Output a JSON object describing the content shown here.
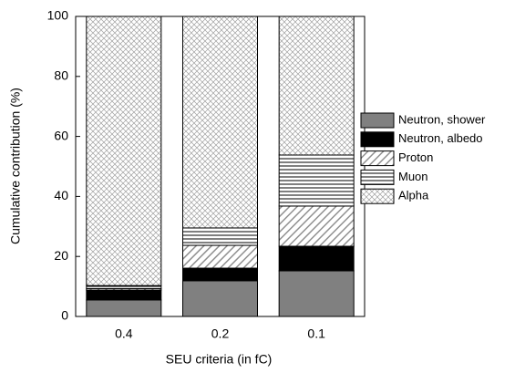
{
  "chart_data": {
    "type": "stacked_bar",
    "x_label": "SEU criteria (in fC)",
    "y_label": "Cumulative contribution (%)",
    "categories": [
      "0.4",
      "0.2",
      "0.1"
    ],
    "series": [
      {
        "name": "Neutron, shower",
        "color": "#808080",
        "pattern": "solid",
        "values": [
          5.5,
          11.9,
          15.2
        ]
      },
      {
        "name": "Neutron, albedo",
        "color": "#000000",
        "pattern": "solid",
        "values": [
          3.3,
          4.2,
          8.2
        ]
      },
      {
        "name": "Proton",
        "color": "#808080",
        "pattern": "diagonal",
        "values": [
          0.5,
          7.6,
          13.4
        ]
      },
      {
        "name": "Muon",
        "color": "#000000",
        "pattern": "horizontal",
        "values": [
          1.0,
          5.8,
          17.0
        ]
      },
      {
        "name": "Alpha",
        "color": "#a0a0a0",
        "pattern": "crosshatch",
        "values": [
          89.7,
          70.5,
          46.2
        ]
      }
    ],
    "ylim": [
      0,
      100
    ],
    "yticks": [
      0,
      20,
      40,
      60,
      80,
      100
    ]
  }
}
